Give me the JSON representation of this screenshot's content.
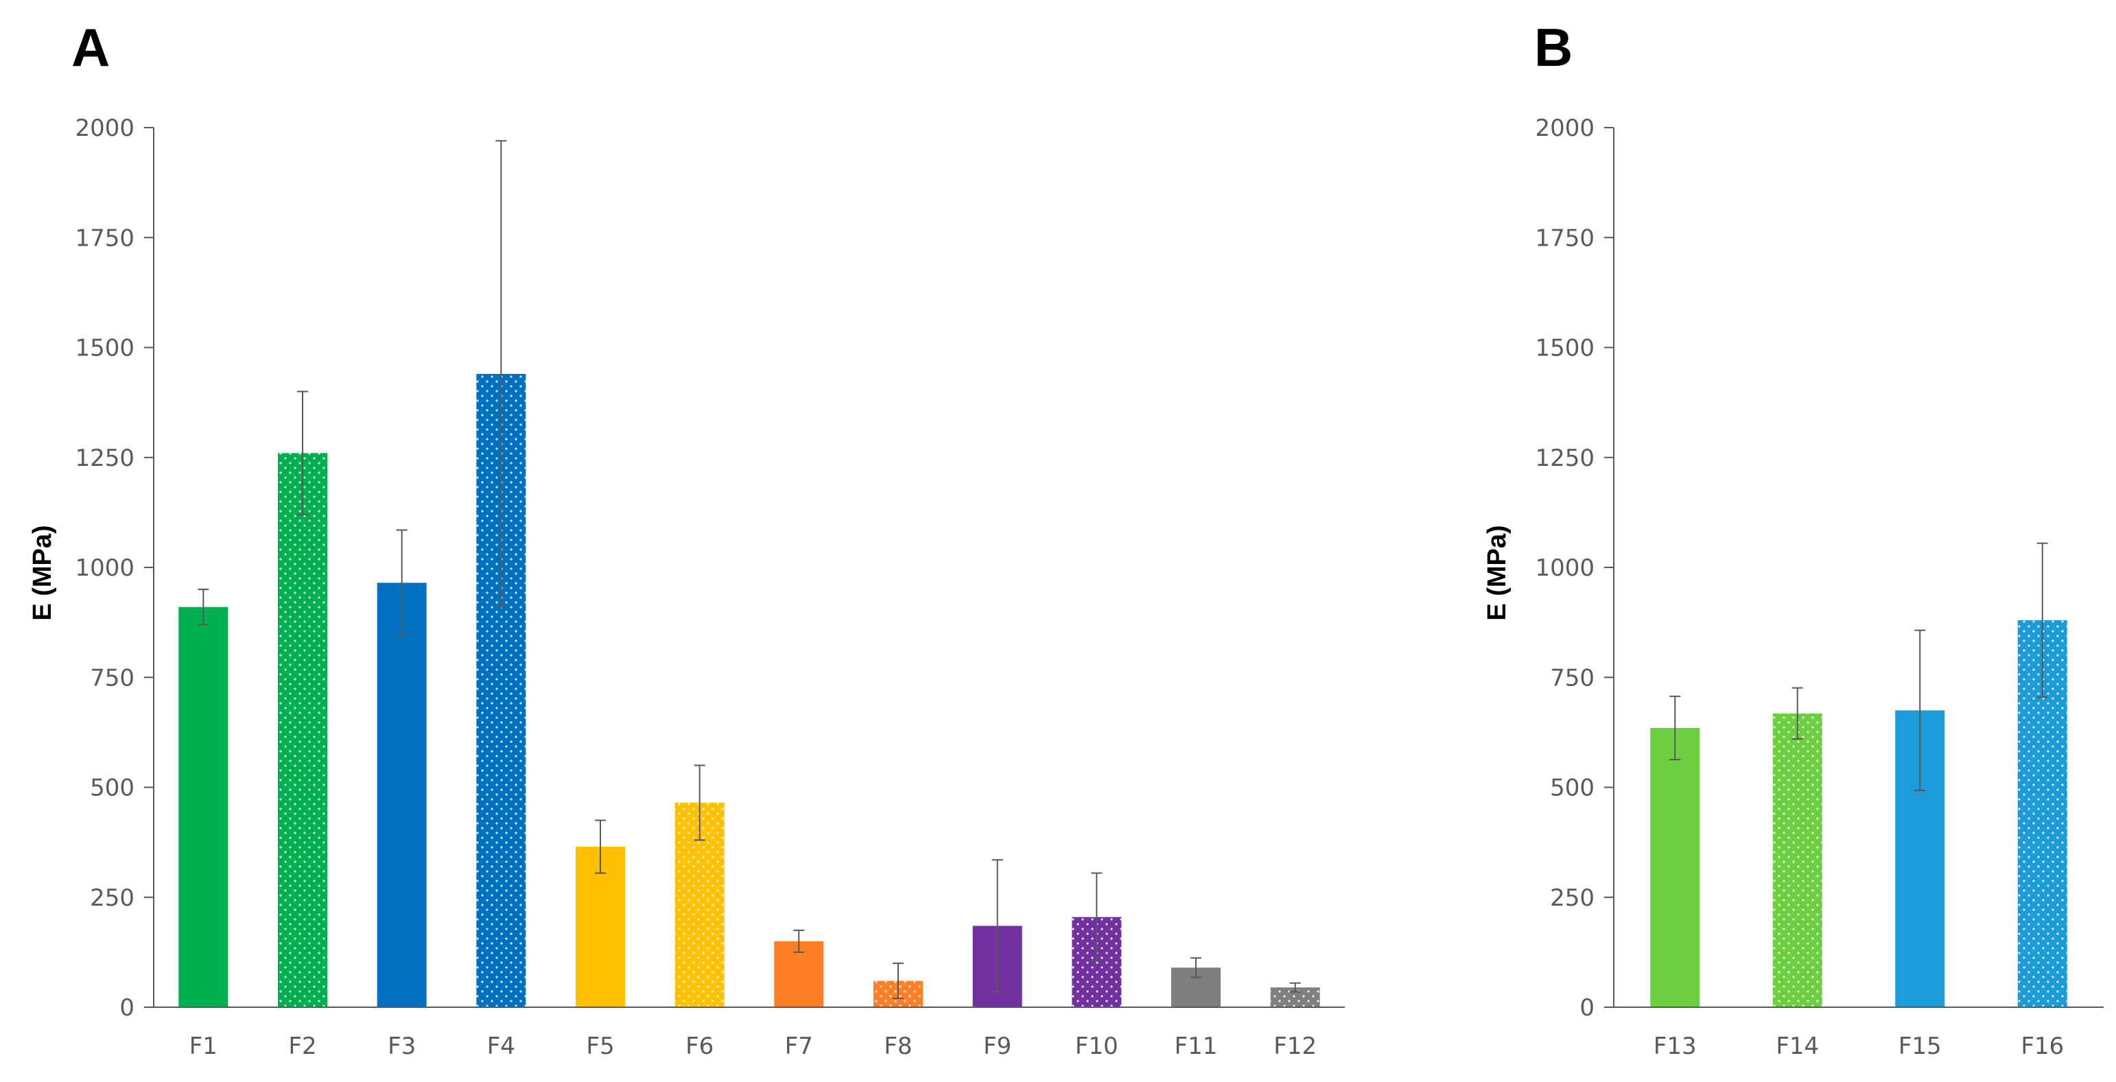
{
  "chart_data": [
    {
      "panel": "A",
      "type": "bar",
      "ylabel": "E (MPa)",
      "ylim": [
        0,
        2000
      ],
      "yticks": [
        "0",
        "250",
        "500",
        "750",
        "1000",
        "1250",
        "1500",
        "1750",
        "2000"
      ],
      "categories": [
        "F1",
        "F2",
        "F3",
        "F4",
        "F5",
        "F6",
        "F7",
        "F8",
        "F9",
        "F10",
        "F11",
        "F12"
      ],
      "values": [
        910,
        1260,
        965,
        1440,
        365,
        465,
        150,
        60,
        185,
        205,
        90,
        45
      ],
      "errors": [
        40,
        140,
        120,
        530,
        60,
        85,
        25,
        40,
        150,
        100,
        22,
        10
      ],
      "colors": [
        "#00B050",
        "#00B050",
        "#0070C0",
        "#0070C0",
        "#FFC000",
        "#FFC000",
        "#FF7F27",
        "#FF7F27",
        "#7030A0",
        "#7030A0",
        "#7F7F7F",
        "#7F7F7F"
      ],
      "dotted": [
        false,
        true,
        false,
        true,
        false,
        true,
        false,
        true,
        false,
        true,
        false,
        true
      ]
    },
    {
      "panel": "B",
      "type": "bar",
      "ylabel": "E (MPa)",
      "ylim": [
        0,
        2000
      ],
      "yticks": [
        "0",
        "250",
        "500",
        "750",
        "1000",
        "1250",
        "1500",
        "1750",
        "2000"
      ],
      "categories": [
        "F13",
        "F14",
        "F15",
        "F16"
      ],
      "values": [
        635,
        668,
        675,
        880
      ],
      "errors": [
        72,
        58,
        182,
        175
      ],
      "colors": [
        "#6CCF3F",
        "#6CCF3F",
        "#1B9BD7",
        "#1B9BD7"
      ],
      "dotted": [
        false,
        true,
        false,
        true
      ]
    }
  ]
}
